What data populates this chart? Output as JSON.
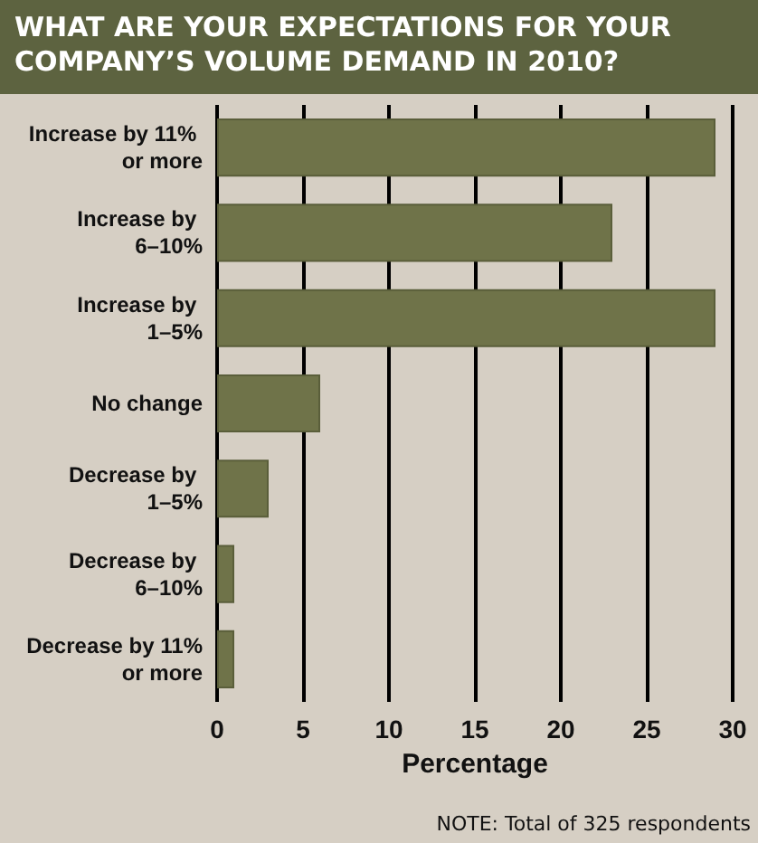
{
  "chart_data": {
    "type": "bar",
    "orientation": "horizontal",
    "title": "WHAT ARE YOUR EXPECTATIONS FOR YOUR COMPANY’S VOLUME DEMAND IN 2010?",
    "xlabel": "Percentage",
    "categories": [
      "Increase by 11% or more",
      "Increase by 6–10%",
      "Increase by 1–5%",
      "No change",
      "Decrease by 1–5%",
      "Decrease by 6–10%",
      "Decrease by 11% or more"
    ],
    "values": [
      29,
      23,
      29,
      6,
      3,
      1,
      1
    ],
    "color": "#6f7349",
    "xlim": [
      0,
      30
    ],
    "xticks": [
      0,
      5,
      10,
      15,
      20,
      25,
      30
    ],
    "grid": "x",
    "annotations": [
      "NOTE: Total of 325 respondents"
    ]
  }
}
